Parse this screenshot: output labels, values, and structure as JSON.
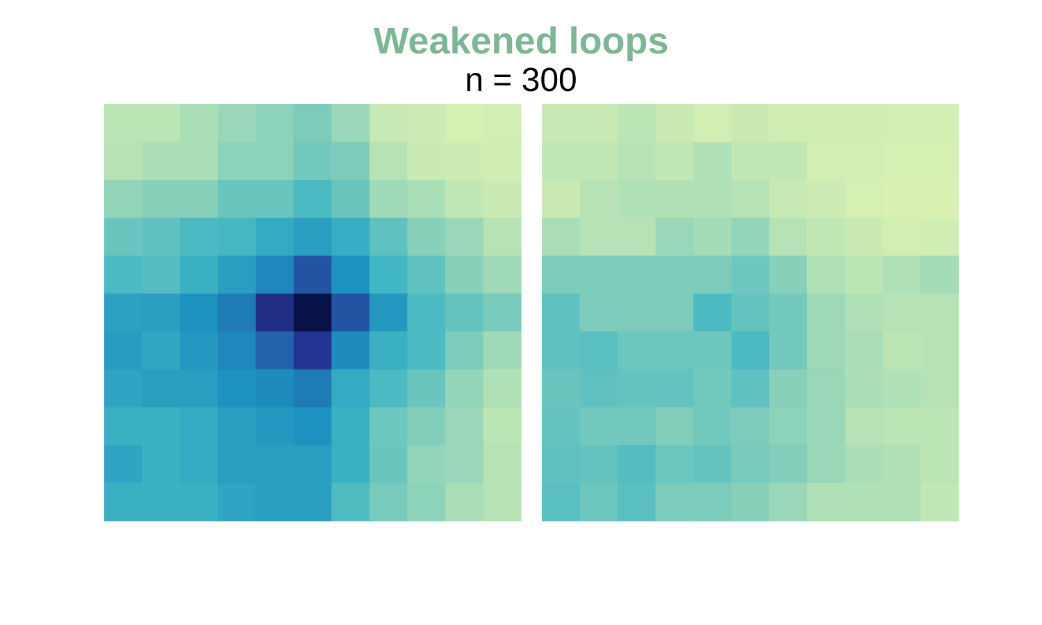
{
  "chart_data": {
    "type": "heatmap",
    "title": "Weakened loops",
    "subtitle": "n = 300",
    "xlabel": "",
    "ylabel": "",
    "grid": false,
    "legend": "none",
    "colormap": "YlGnBu",
    "value_range": [
      0,
      1
    ],
    "panels": [
      {
        "rows": 11,
        "cols": 11,
        "values": [
          [
            0.27,
            0.27,
            0.3,
            0.33,
            0.35,
            0.38,
            0.33,
            0.25,
            0.23,
            0.2,
            0.21
          ],
          [
            0.28,
            0.3,
            0.3,
            0.35,
            0.35,
            0.4,
            0.38,
            0.28,
            0.24,
            0.23,
            0.22
          ],
          [
            0.34,
            0.36,
            0.36,
            0.42,
            0.42,
            0.48,
            0.42,
            0.32,
            0.3,
            0.26,
            0.24
          ],
          [
            0.42,
            0.44,
            0.48,
            0.49,
            0.54,
            0.58,
            0.53,
            0.44,
            0.36,
            0.33,
            0.28
          ],
          [
            0.48,
            0.46,
            0.52,
            0.58,
            0.65,
            0.78,
            0.62,
            0.5,
            0.44,
            0.36,
            0.32
          ],
          [
            0.57,
            0.58,
            0.62,
            0.68,
            0.9,
            1.0,
            0.78,
            0.6,
            0.48,
            0.43,
            0.39
          ],
          [
            0.59,
            0.55,
            0.6,
            0.65,
            0.74,
            0.88,
            0.64,
            0.52,
            0.48,
            0.38,
            0.32
          ],
          [
            0.56,
            0.58,
            0.58,
            0.62,
            0.64,
            0.68,
            0.54,
            0.48,
            0.42,
            0.34,
            0.29
          ],
          [
            0.52,
            0.52,
            0.54,
            0.58,
            0.6,
            0.62,
            0.52,
            0.41,
            0.37,
            0.33,
            0.27
          ],
          [
            0.56,
            0.52,
            0.54,
            0.58,
            0.58,
            0.58,
            0.52,
            0.42,
            0.34,
            0.33,
            0.28
          ],
          [
            0.52,
            0.52,
            0.52,
            0.56,
            0.58,
            0.58,
            0.47,
            0.39,
            0.35,
            0.3,
            0.28
          ]
        ]
      },
      {
        "rows": 11,
        "cols": 11,
        "values": [
          [
            0.25,
            0.25,
            0.27,
            0.24,
            0.21,
            0.24,
            0.22,
            0.22,
            0.22,
            0.21,
            0.21
          ],
          [
            0.26,
            0.26,
            0.28,
            0.26,
            0.29,
            0.26,
            0.26,
            0.21,
            0.21,
            0.2,
            0.2
          ],
          [
            0.24,
            0.28,
            0.29,
            0.29,
            0.29,
            0.28,
            0.25,
            0.23,
            0.2,
            0.19,
            0.19
          ],
          [
            0.3,
            0.28,
            0.28,
            0.33,
            0.31,
            0.34,
            0.28,
            0.26,
            0.24,
            0.21,
            0.22
          ],
          [
            0.38,
            0.38,
            0.38,
            0.38,
            0.38,
            0.41,
            0.36,
            0.29,
            0.27,
            0.29,
            0.31
          ],
          [
            0.44,
            0.38,
            0.38,
            0.38,
            0.48,
            0.43,
            0.4,
            0.32,
            0.29,
            0.28,
            0.28
          ],
          [
            0.44,
            0.45,
            0.41,
            0.41,
            0.41,
            0.48,
            0.4,
            0.32,
            0.3,
            0.27,
            0.28
          ],
          [
            0.42,
            0.44,
            0.43,
            0.43,
            0.4,
            0.44,
            0.36,
            0.33,
            0.3,
            0.29,
            0.28
          ],
          [
            0.43,
            0.4,
            0.4,
            0.37,
            0.4,
            0.38,
            0.35,
            0.33,
            0.28,
            0.27,
            0.27
          ],
          [
            0.44,
            0.43,
            0.46,
            0.41,
            0.43,
            0.39,
            0.37,
            0.33,
            0.3,
            0.29,
            0.27
          ],
          [
            0.45,
            0.41,
            0.45,
            0.38,
            0.38,
            0.36,
            0.33,
            0.29,
            0.29,
            0.29,
            0.26
          ]
        ]
      }
    ]
  }
}
